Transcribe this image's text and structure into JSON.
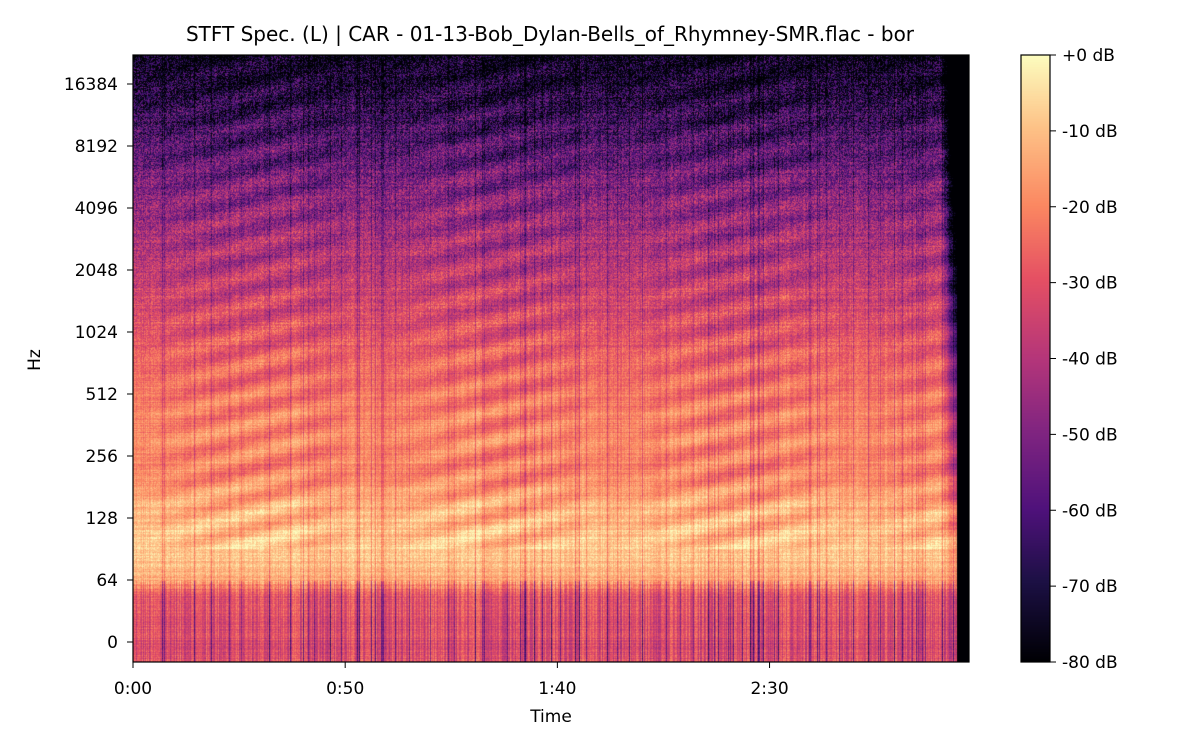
{
  "chart_data": {
    "type": "heatmap",
    "title": "STFT Spec. (L) | CAR - 01-13-Bob_Dylan-Bells_of_Rhymney-SMR.flac - bor",
    "xlabel": "Time",
    "ylabel": "Hz",
    "x_ticks": [
      "0:00",
      "0:50",
      "1:40",
      "2:30"
    ],
    "x_tick_seconds": [
      0,
      50,
      100,
      150
    ],
    "xlim_seconds": [
      0,
      197
    ],
    "audio_end_seconds": 194,
    "y_ticks": [
      "0",
      "64",
      "128",
      "256",
      "512",
      "1024",
      "2048",
      "4096",
      "8192",
      "16384"
    ],
    "y_scale": "log2",
    "colormap": "magma",
    "colorbar": {
      "ticks": [
        "+0 dB",
        "-10 dB",
        "-20 dB",
        "-30 dB",
        "-40 dB",
        "-50 dB",
        "-60 dB",
        "-70 dB",
        "-80 dB"
      ],
      "range_db": [
        -80,
        0
      ]
    },
    "band_profile_db": [
      {
        "hz": 0,
        "db": -32
      },
      {
        "hz": 50,
        "db": -30
      },
      {
        "hz": 64,
        "db": -14
      },
      {
        "hz": 90,
        "db": -8
      },
      {
        "hz": 140,
        "db": -12
      },
      {
        "hz": 200,
        "db": -20
      },
      {
        "hz": 300,
        "db": -20
      },
      {
        "hz": 512,
        "db": -22
      },
      {
        "hz": 1024,
        "db": -30
      },
      {
        "hz": 2048,
        "db": -38
      },
      {
        "hz": 4096,
        "db": -47
      },
      {
        "hz": 8192,
        "db": -58
      },
      {
        "hz": 16384,
        "db": -72
      },
      {
        "hz": 24000,
        "db": -80
      }
    ]
  }
}
